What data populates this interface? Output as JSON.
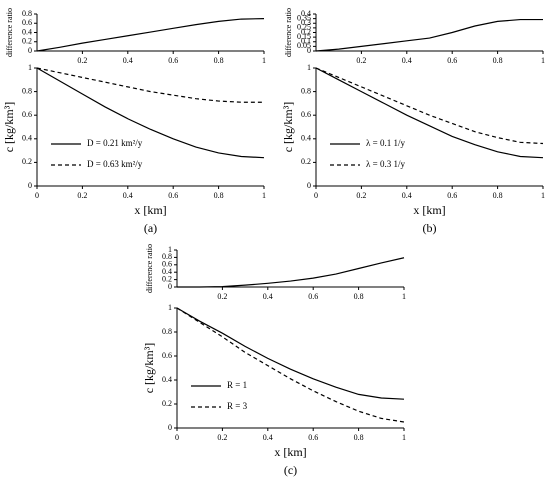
{
  "chart_data": [
    {
      "type": "line",
      "ylabel": "difference ratio",
      "x": [
        0,
        0.1,
        0.2,
        0.3,
        0.4,
        0.5,
        0.6,
        0.7,
        0.8,
        0.9,
        1
      ],
      "series": [
        {
          "color": "#000000",
          "style": "solid",
          "values": [
            0,
            0.08,
            0.17,
            0.25,
            0.33,
            0.41,
            0.49,
            0.57,
            0.64,
            0.69,
            0.7
          ]
        }
      ],
      "xlim": [
        0,
        1
      ],
      "ylim": [
        0,
        0.8
      ],
      "xticks": [
        0.2,
        0.4,
        0.6,
        0.8,
        1
      ],
      "yticks": [
        0,
        0.2,
        0.4,
        0.6,
        0.8
      ]
    },
    {
      "type": "line",
      "ylabel": "c [kg/km³]",
      "xlabel": "x [km]",
      "caption": "(a)",
      "x": [
        0,
        0.1,
        0.2,
        0.3,
        0.4,
        0.5,
        0.6,
        0.7,
        0.8,
        0.9,
        1
      ],
      "series": [
        {
          "name": "D = 0.21 km²/y",
          "color": "#000000",
          "style": "solid",
          "values": [
            1,
            0.89,
            0.78,
            0.67,
            0.57,
            0.48,
            0.4,
            0.33,
            0.28,
            0.25,
            0.24
          ]
        },
        {
          "name": "D = 0.63 km²/y",
          "color": "#000000",
          "style": "dashed",
          "values": [
            1,
            0.96,
            0.92,
            0.88,
            0.84,
            0.8,
            0.77,
            0.74,
            0.72,
            0.71,
            0.71
          ]
        }
      ],
      "xlim": [
        0,
        1
      ],
      "ylim": [
        0,
        1
      ],
      "xticks": [
        0,
        0.2,
        0.4,
        0.6,
        0.8,
        1
      ],
      "yticks": [
        0,
        0.2,
        0.4,
        0.6,
        0.8,
        1
      ],
      "legend": "lower left"
    },
    {
      "type": "line",
      "ylabel": "difference ratio",
      "x": [
        0,
        0.1,
        0.2,
        0.3,
        0.4,
        0.5,
        0.6,
        0.7,
        0.8,
        0.9,
        1
      ],
      "series": [
        {
          "color": "#000000",
          "style": "solid",
          "values": [
            0,
            0.02,
            0.05,
            0.08,
            0.11,
            0.14,
            0.2,
            0.27,
            0.32,
            0.34,
            0.34
          ]
        }
      ],
      "xlim": [
        0,
        1
      ],
      "ylim": [
        0,
        0.4
      ],
      "xticks": [
        0.2,
        0.4,
        0.6,
        0.8,
        1
      ],
      "yticks": [
        0,
        0.05,
        0.1,
        0.15,
        0.2,
        0.25,
        0.3,
        0.35,
        0.4
      ]
    },
    {
      "type": "line",
      "ylabel": "c [kg/km³]",
      "xlabel": "x [km]",
      "caption": "(b)",
      "x": [
        0,
        0.1,
        0.2,
        0.3,
        0.4,
        0.5,
        0.6,
        0.7,
        0.8,
        0.9,
        1
      ],
      "series": [
        {
          "name": "λ = 0.1 1/y",
          "color": "#000000",
          "style": "solid",
          "values": [
            1,
            0.9,
            0.8,
            0.7,
            0.6,
            0.51,
            0.42,
            0.35,
            0.29,
            0.25,
            0.24
          ]
        },
        {
          "name": "λ = 0.3 1/y",
          "color": "#000000",
          "style": "dashed",
          "values": [
            1,
            0.92,
            0.84,
            0.76,
            0.68,
            0.6,
            0.53,
            0.46,
            0.41,
            0.37,
            0.36
          ]
        }
      ],
      "xlim": [
        0,
        1
      ],
      "ylim": [
        0,
        1
      ],
      "xticks": [
        0,
        0.2,
        0.4,
        0.6,
        0.8,
        1
      ],
      "yticks": [
        0,
        0.2,
        0.4,
        0.6,
        0.8,
        1
      ],
      "legend": "lower left"
    },
    {
      "type": "line",
      "ylabel": "difference ratio",
      "x": [
        0,
        0.1,
        0.2,
        0.3,
        0.4,
        0.5,
        0.6,
        0.7,
        0.8,
        0.9,
        1
      ],
      "series": [
        {
          "color": "#000000",
          "style": "solid",
          "values": [
            0,
            0,
            0.01,
            0.05,
            0.1,
            0.16,
            0.24,
            0.35,
            0.5,
            0.65,
            0.79
          ]
        }
      ],
      "xlim": [
        0,
        1
      ],
      "ylim": [
        0,
        1
      ],
      "xticks": [
        0.2,
        0.4,
        0.6,
        0.8,
        1
      ],
      "yticks": [
        0,
        0.2,
        0.4,
        0.6,
        0.8,
        1
      ]
    },
    {
      "type": "line",
      "ylabel": "c [kg/km³]",
      "xlabel": "x [km]",
      "caption": "(c)",
      "x": [
        0,
        0.1,
        0.2,
        0.3,
        0.4,
        0.5,
        0.6,
        0.7,
        0.8,
        0.9,
        1
      ],
      "series": [
        {
          "name": "R = 1",
          "color": "#000000",
          "style": "solid",
          "values": [
            1,
            0.89,
            0.79,
            0.68,
            0.58,
            0.49,
            0.41,
            0.34,
            0.28,
            0.25,
            0.24
          ]
        },
        {
          "name": "R = 3",
          "color": "#000000",
          "style": "dashed",
          "values": [
            1,
            0.88,
            0.76,
            0.63,
            0.52,
            0.41,
            0.31,
            0.22,
            0.14,
            0.08,
            0.05
          ]
        }
      ],
      "xlim": [
        0,
        1
      ],
      "ylim": [
        0,
        1
      ],
      "xticks": [
        0,
        0.2,
        0.4,
        0.6,
        0.8,
        1
      ],
      "yticks": [
        0,
        0.2,
        0.4,
        0.6,
        0.8,
        1
      ],
      "legend": "lower left"
    }
  ]
}
